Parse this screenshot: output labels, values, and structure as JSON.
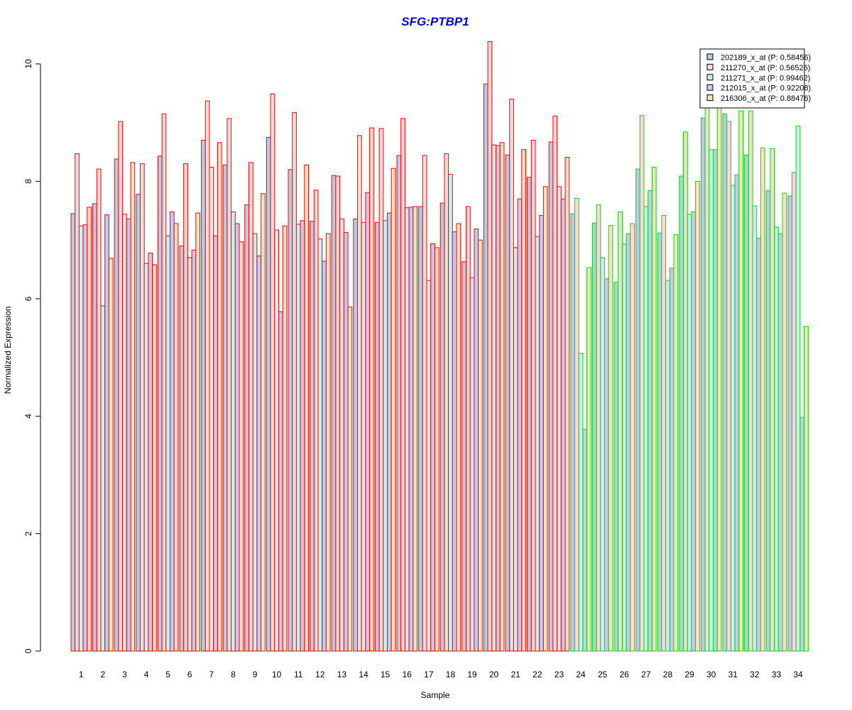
{
  "chart_data": {
    "type": "bar",
    "title": "SFG:PTBP1",
    "xlabel": "Sample",
    "ylabel": "Normalized Expression",
    "ylim": [
      0,
      10.4
    ],
    "yticks": [
      0,
      2,
      4,
      6,
      8,
      10
    ],
    "grid": false,
    "legend_position": "top-right",
    "categories": [
      "1",
      "2",
      "3",
      "4",
      "5",
      "6",
      "7",
      "8",
      "9",
      "10",
      "11",
      "12",
      "13",
      "14",
      "15",
      "16",
      "17",
      "18",
      "19",
      "20",
      "21",
      "22",
      "23",
      "24",
      "25",
      "26",
      "27",
      "28",
      "29",
      "30",
      "31",
      "32",
      "33",
      "34"
    ],
    "group_split_after": 23,
    "groups": [
      {
        "border_color": "#ff0000",
        "samples": "1-23"
      },
      {
        "border_color": "#00dd00",
        "samples": "24-34"
      }
    ],
    "series": [
      {
        "name": "202189_x_at (P: 0.58456)",
        "fill": "#b5cde3",
        "values": [
          7.45,
          7.62,
          8.38,
          7.78,
          8.43,
          6.9,
          8.7,
          8.28,
          7.6,
          8.75,
          8.2,
          7.32,
          8.1,
          7.36,
          7.3,
          8.44,
          7.57,
          7.63,
          6.63,
          9.66,
          8.45,
          8.07,
          8.67,
          7.45,
          7.29,
          6.28,
          8.21,
          7.12,
          8.09,
          9.08,
          9.15,
          8.45,
          7.84,
          7.75
        ]
      },
      {
        "name": "211270_x_at (P: 0.56526)",
        "fill": "#ffd9d9",
        "values": [
          8.47,
          8.21,
          9.02,
          8.3,
          9.15,
          8.3,
          9.37,
          9.07,
          8.32,
          9.49,
          9.17,
          7.85,
          8.09,
          8.78,
          8.9,
          9.07,
          8.44,
          8.47,
          7.57,
          10.38,
          9.4,
          8.7,
          9.11,
          7.71,
          7.6,
          7.48,
          9.12,
          7.42,
          8.84,
          9.85,
          9.02,
          9.2,
          8.56,
          8.15
        ]
      },
      {
        "name": "211271_x_at (P: 0.99462)",
        "fill": "#c8f0f0",
        "values": [
          7.24,
          5.88,
          7.44,
          6.6,
          7.07,
          6.7,
          8.24,
          7.48,
          7.11,
          7.17,
          7.27,
          7.02,
          7.36,
          7.3,
          7.33,
          7.55,
          6.31,
          8.12,
          6.36,
          8.62,
          6.87,
          7.06,
          7.91,
          5.07,
          6.7,
          6.93,
          7.57,
          6.31,
          7.44,
          8.54,
          7.93,
          7.58,
          7.22,
          8.94
        ]
      },
      {
        "name": "212015_x_at (P: 0.92208)",
        "fill": "#c8c8f0",
        "values": [
          7.26,
          7.43,
          7.36,
          6.78,
          7.48,
          6.83,
          7.07,
          7.28,
          6.73,
          5.78,
          7.33,
          6.64,
          7.13,
          7.81,
          7.46,
          7.56,
          6.94,
          7.14,
          7.19,
          8.61,
          7.7,
          7.42,
          7.7,
          3.78,
          6.34,
          7.11,
          7.84,
          6.52,
          7.48,
          8.54,
          8.11,
          7.03,
          7.11,
          3.98
        ]
      },
      {
        "name": "216306_x_at (P: 0.88476)",
        "fill": "#ffe0c0",
        "values": [
          7.56,
          6.69,
          8.32,
          6.58,
          7.28,
          7.46,
          8.66,
          6.97,
          7.79,
          7.24,
          8.28,
          7.11,
          5.86,
          8.91,
          8.22,
          7.57,
          6.87,
          7.28,
          7.0,
          8.66,
          8.54,
          7.91,
          8.41,
          6.53,
          7.25,
          7.28,
          8.24,
          7.09,
          8.0,
          9.3,
          9.2,
          8.57,
          7.8,
          5.53
        ]
      }
    ]
  }
}
